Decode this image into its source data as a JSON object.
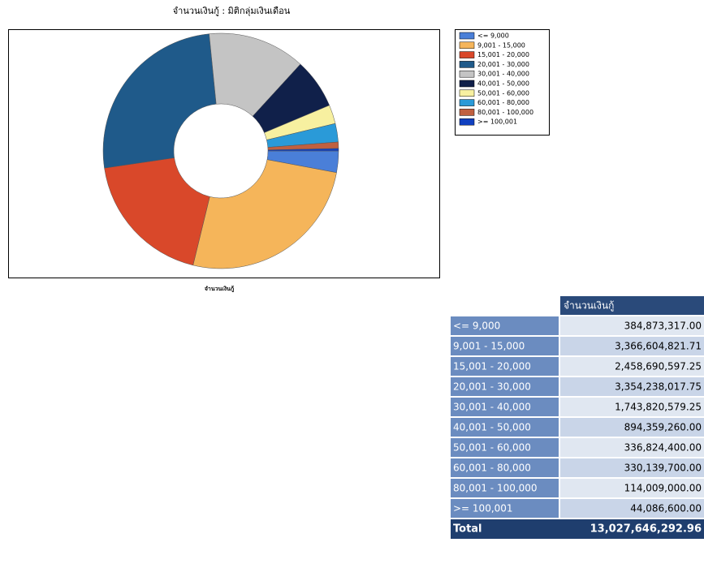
{
  "chart_data": {
    "type": "pie",
    "title": "จำนวนเงินกู้ : มิติกลุ่มเงินเดือน",
    "xlabel": "จำนวนเงินกู้",
    "categories": [
      "<= 9,000",
      "9,001 - 15,000",
      "15,001 - 20,000",
      "20,001 - 30,000",
      "30,001 - 40,000",
      "40,001 - 50,000",
      "50,001 - 60,000",
      "60,001 - 80,000",
      "80,001 - 100,000",
      ">= 100,001"
    ],
    "values": [
      384873317.0,
      3366604821.71,
      2458690597.25,
      3354238017.75,
      1743820579.25,
      894359260.0,
      336824400.0,
      330139700.0,
      114009000.0,
      44086600.0
    ],
    "value_labels": [
      "384,873,317.00",
      "3,366,604,821.71",
      "2,458,690,597.25",
      "3,354,238,017.75",
      "1,743,820,579.25",
      "894,359,260.00",
      "336,824,400.00",
      "330,139,700.00",
      "114,009,000.00",
      "44,086,600.00"
    ],
    "colors": [
      "#4a7fd8",
      "#f5b55a",
      "#d9482a",
      "#1f5a8a",
      "#c4c4c4",
      "#10204a",
      "#f7f0a0",
      "#2a9ad8",
      "#c06040",
      "#1040c0"
    ]
  },
  "table": {
    "header": "จำนวนเงินกู้",
    "total_label": "Total",
    "total": "13,027,646,292.96"
  }
}
